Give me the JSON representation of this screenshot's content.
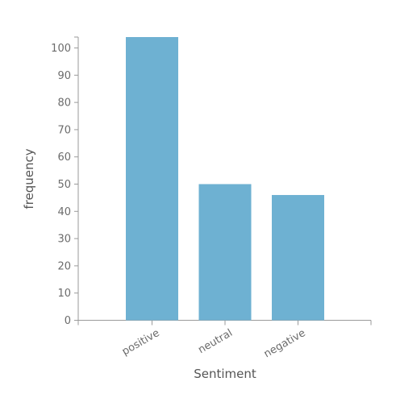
{
  "chart_data": {
    "type": "bar",
    "categories": [
      "positive",
      "neutral",
      "negative"
    ],
    "values": [
      104,
      50,
      46
    ],
    "xlabel": "Sentiment",
    "ylabel": "frequency",
    "ylim": [
      0,
      104
    ],
    "yticks": [
      0,
      10,
      20,
      30,
      40,
      50,
      60,
      70,
      80,
      90,
      100
    ],
    "grid": false,
    "legend": "none",
    "colors": {
      "bar": "#6eb1d2",
      "axis": "#9a9a9a",
      "tick_text": "#6b6b6b",
      "axis_title": "#555555"
    }
  }
}
